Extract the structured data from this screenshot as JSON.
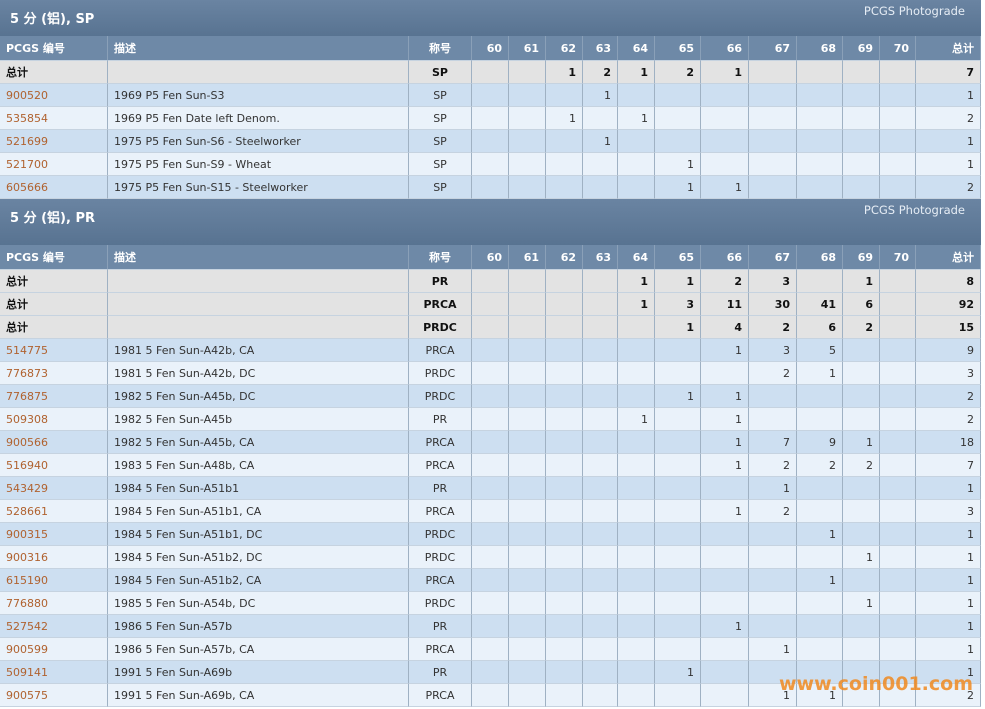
{
  "sections": [
    {
      "title": "5 分 (铝), SP",
      "photograde": "PCGS Photograde",
      "columns": [
        "PCGS 编号",
        "描述",
        "称号",
        "60",
        "61",
        "62",
        "63",
        "64",
        "65",
        "66",
        "67",
        "68",
        "69",
        "70",
        "总计"
      ],
      "rows": [
        [
          "总计",
          null,
          "SP",
          null,
          null,
          1,
          2,
          1,
          2,
          1,
          null,
          null,
          null,
          null,
          7
        ],
        [
          "900520",
          "1969 P5 Fen Sun-S3",
          "SP",
          null,
          null,
          null,
          1,
          null,
          null,
          null,
          null,
          null,
          null,
          null,
          1
        ],
        [
          "535854",
          "1969 P5 Fen Date left Denom.",
          "SP",
          null,
          null,
          1,
          null,
          1,
          null,
          null,
          null,
          null,
          null,
          null,
          2
        ],
        [
          "521699",
          "1975 P5 Fen Sun-S6 - Steelworker",
          "SP",
          null,
          null,
          null,
          1,
          null,
          null,
          null,
          null,
          null,
          null,
          null,
          1
        ],
        [
          "521700",
          "1975 P5 Fen Sun-S9 - Wheat",
          "SP",
          null,
          null,
          null,
          null,
          null,
          1,
          null,
          null,
          null,
          null,
          null,
          1
        ],
        [
          "605666",
          "1975 P5 Fen Sun-S15 - Steelworker",
          "SP",
          null,
          null,
          null,
          null,
          null,
          1,
          1,
          null,
          null,
          null,
          null,
          2
        ]
      ]
    },
    {
      "title": "5 分 (铝), PR",
      "photograde": "PCGS Photograde",
      "columns": [
        "PCGS 编号",
        "描述",
        "称号",
        "60",
        "61",
        "62",
        "63",
        "64",
        "65",
        "66",
        "67",
        "68",
        "69",
        "70",
        "总计"
      ],
      "rows": [
        [
          "总计",
          null,
          "PR",
          null,
          null,
          null,
          null,
          1,
          1,
          2,
          3,
          null,
          1,
          null,
          8
        ],
        [
          "总计",
          null,
          "PRCA",
          null,
          null,
          null,
          null,
          1,
          3,
          11,
          30,
          41,
          6,
          null,
          92
        ],
        [
          "总计",
          null,
          "PRDC",
          null,
          null,
          null,
          null,
          null,
          1,
          4,
          2,
          6,
          2,
          null,
          15
        ],
        [
          "514775",
          "1981 5 Fen Sun-A42b, CA",
          "PRCA",
          null,
          null,
          null,
          null,
          null,
          null,
          1,
          3,
          5,
          null,
          null,
          9
        ],
        [
          "776873",
          "1981 5 Fen Sun-A42b, DC",
          "PRDC",
          null,
          null,
          null,
          null,
          null,
          null,
          null,
          2,
          1,
          null,
          null,
          3
        ],
        [
          "776875",
          "1982 5 Fen Sun-A45b, DC",
          "PRDC",
          null,
          null,
          null,
          null,
          null,
          1,
          1,
          null,
          null,
          null,
          null,
          2
        ],
        [
          "509308",
          "1982 5 Fen Sun-A45b",
          "PR",
          null,
          null,
          null,
          null,
          1,
          null,
          1,
          null,
          null,
          null,
          null,
          2
        ],
        [
          "900566",
          "1982 5 Fen Sun-A45b, CA",
          "PRCA",
          null,
          null,
          null,
          null,
          null,
          null,
          1,
          7,
          9,
          1,
          null,
          18
        ],
        [
          "516940",
          "1983 5 Fen Sun-A48b, CA",
          "PRCA",
          null,
          null,
          null,
          null,
          null,
          null,
          1,
          2,
          2,
          2,
          null,
          7
        ],
        [
          "543429",
          "1984 5 Fen Sun-A51b1",
          "PR",
          null,
          null,
          null,
          null,
          null,
          null,
          null,
          1,
          null,
          null,
          null,
          1
        ],
        [
          "528661",
          "1984 5 Fen Sun-A51b1, CA",
          "PRCA",
          null,
          null,
          null,
          null,
          null,
          null,
          1,
          2,
          null,
          null,
          null,
          3
        ],
        [
          "900315",
          "1984 5 Fen Sun-A51b1, DC",
          "PRDC",
          null,
          null,
          null,
          null,
          null,
          null,
          null,
          null,
          1,
          null,
          null,
          1
        ],
        [
          "900316",
          "1984 5 Fen Sun-A51b2, DC",
          "PRDC",
          null,
          null,
          null,
          null,
          null,
          null,
          null,
          null,
          null,
          1,
          null,
          1
        ],
        [
          "615190",
          "1984 5 Fen Sun-A51b2, CA",
          "PRCA",
          null,
          null,
          null,
          null,
          null,
          null,
          null,
          null,
          1,
          null,
          null,
          1
        ],
        [
          "776880",
          "1985 5 Fen Sun-A54b, DC",
          "PRDC",
          null,
          null,
          null,
          null,
          null,
          null,
          null,
          null,
          null,
          1,
          null,
          1
        ],
        [
          "527542",
          "1986 5 Fen Sun-A57b",
          "PR",
          null,
          null,
          null,
          null,
          null,
          null,
          1,
          null,
          null,
          null,
          null,
          1
        ],
        [
          "900599",
          "1986 5 Fen Sun-A57b, CA",
          "PRCA",
          null,
          null,
          null,
          null,
          null,
          null,
          null,
          1,
          null,
          null,
          null,
          1
        ],
        [
          "509141",
          "1991 5 Fen Sun-A69b",
          "PR",
          null,
          null,
          null,
          null,
          null,
          1,
          null,
          null,
          null,
          null,
          null,
          1
        ],
        [
          "900575",
          "1991 5 Fen Sun-A69b, CA",
          "PRCA",
          null,
          null,
          null,
          null,
          null,
          null,
          null,
          1,
          1,
          null,
          null,
          2
        ]
      ]
    }
  ],
  "watermark": "www.coin001.com"
}
